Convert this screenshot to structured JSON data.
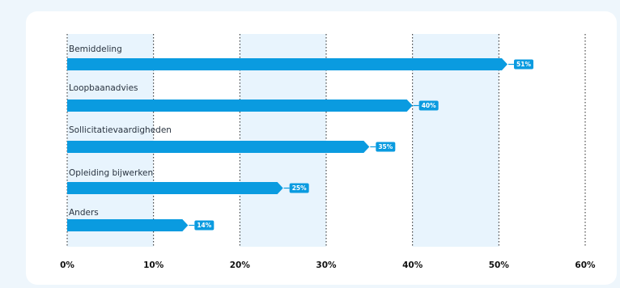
{
  "chart_data": {
    "type": "bar",
    "orientation": "horizontal",
    "categories": [
      "Bemiddeling",
      "Loopbaanadvies",
      "Sollicitatievaardigheden",
      "Opleiding bijwerken",
      "Anders"
    ],
    "values": [
      51,
      40,
      35,
      25,
      14
    ],
    "value_labels": [
      "51%",
      "40%",
      "35%",
      "25%",
      "14%"
    ],
    "x_ticks": [
      "0%",
      "10%",
      "20%",
      "30%",
      "40%",
      "50%",
      "60%"
    ],
    "xlim": [
      0,
      60
    ],
    "title": "",
    "xlabel": "",
    "ylabel": "",
    "grid": "vertical dotted",
    "colors": {
      "bar": "#0a9be0",
      "band": "#e8f4fd",
      "grid": "#222222",
      "background": "#eef6fc"
    }
  }
}
